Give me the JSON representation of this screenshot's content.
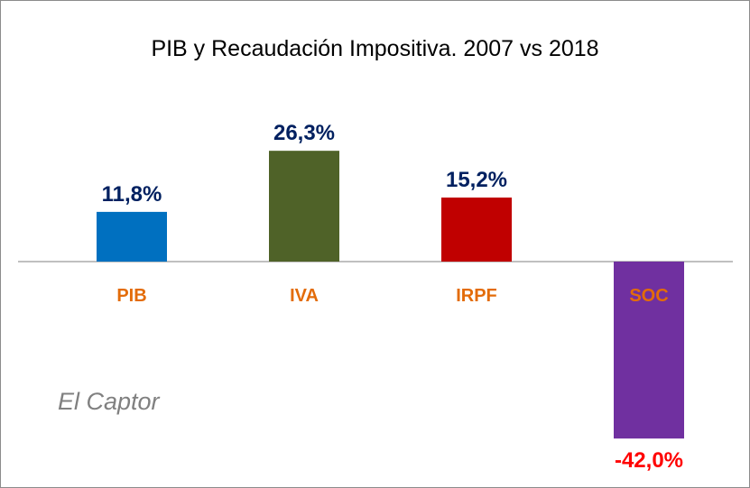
{
  "chart_data": {
    "type": "bar",
    "title": "PIB y Recaudación Impositiva. 2007 vs 2018",
    "xlabel": "",
    "ylabel": "",
    "categories": [
      "PIB",
      "IVA",
      "IRPF",
      "SOC"
    ],
    "values": [
      11.8,
      26.3,
      15.2,
      -42.0
    ],
    "data_labels": [
      "11,8%",
      "26,3%",
      "15,2%",
      "-42,0%"
    ],
    "bar_colors": [
      "#0070C0",
      "#4F6228",
      "#C00000",
      "#7030A0"
    ],
    "label_colors": {
      "positive_value": "#002060",
      "negative_value": "#FF0000",
      "category": "#E36C09"
    },
    "ylim": [
      -42.0,
      26.3
    ],
    "grid": false,
    "legend": "none"
  },
  "watermark": "El Captor"
}
